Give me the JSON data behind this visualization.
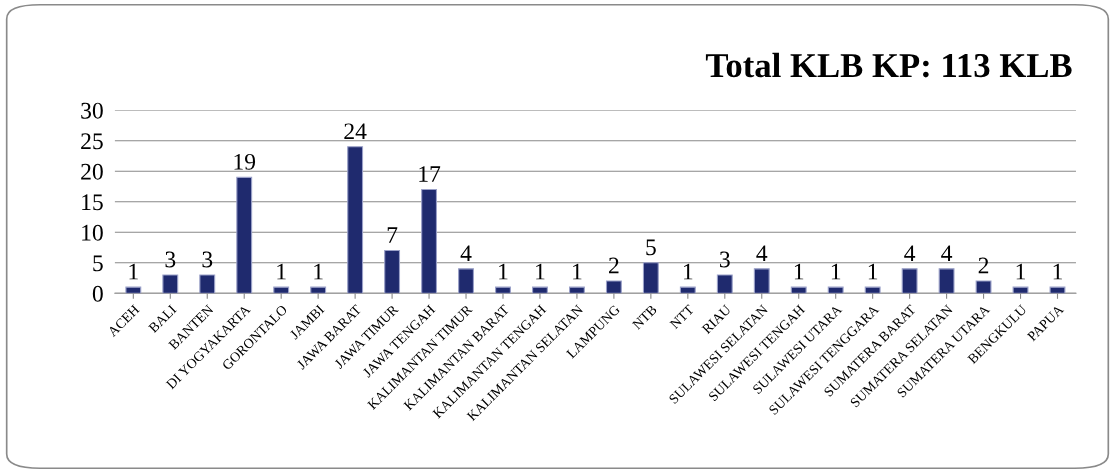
{
  "chart_data": {
    "type": "bar",
    "title": "Total KLB KP: 113 KLB",
    "categories": [
      "ACEH",
      "BALI",
      "BANTEN",
      "DI YOGYAKARTA",
      "GORONTALO",
      "JAMBI",
      "JAWA BARAT",
      "JAWA TIMUR",
      "JAWA TENGAH",
      "KALIMANTAN TIMUR",
      "KALIMANTAN BARAT",
      "KALIMANTAN TENGAH",
      "KALIMANTAN SELATAN",
      "LAMPUNG",
      "NTB",
      "NTT",
      "RIAU",
      "SULAWESI SELATAN",
      "SULAWESI TENGAH",
      "SULAWESI UTARA",
      "SULAWESI TENGGARA",
      "SUMATERA BARAT",
      "SUMATERA SELATAN",
      "SUMATERA UTARA",
      "BENGKULU",
      "PAPUA"
    ],
    "values": [
      1,
      3,
      3,
      19,
      1,
      1,
      24,
      7,
      17,
      4,
      1,
      1,
      1,
      2,
      5,
      1,
      3,
      4,
      1,
      1,
      1,
      4,
      4,
      2,
      1,
      1
    ],
    "color": "#1f2a6e",
    "ylim": [
      0,
      30
    ],
    "yticks": [
      0,
      5,
      10,
      15,
      20,
      25,
      30
    ],
    "grid": "y",
    "data_labels": true
  }
}
